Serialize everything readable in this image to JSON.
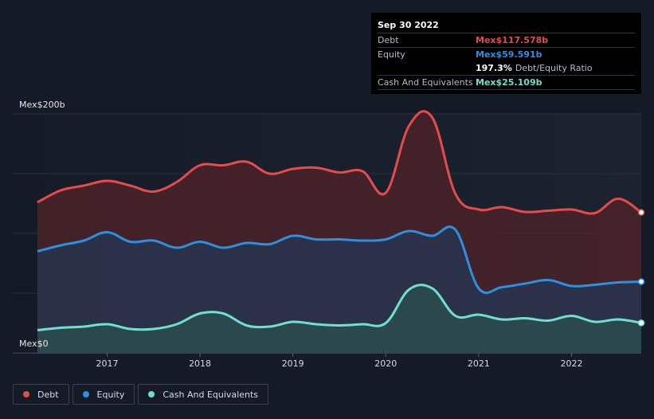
{
  "tooltip": {
    "date": "Sep 30 2022",
    "rows": [
      {
        "label": "Debt",
        "value": "Mex$117.578b",
        "color": "#e64b4b"
      },
      {
        "label": "Equity",
        "value": "Mex$59.591b",
        "color": "#2d8fe0"
      }
    ],
    "ratio_value": "197.3%",
    "ratio_label": "Debt/Equity Ratio",
    "cash": {
      "label": "Cash And Equivalents",
      "value": "Mex$25.109b",
      "color": "#6fe0cd"
    }
  },
  "legend": [
    {
      "label": "Debt",
      "color": "#e64b4b"
    },
    {
      "label": "Equity",
      "color": "#2d8fe0"
    },
    {
      "label": "Cash And Equivalents",
      "color": "#6fe0cd"
    }
  ],
  "chart_data": {
    "type": "area",
    "title": "",
    "xlabel": "",
    "ylabel": "",
    "y_top_label": "Mex$200b",
    "y_bottom_label": "Mex$0",
    "ylim": [
      0,
      200
    ],
    "xlim": [
      2016.25,
      2022.75
    ],
    "x_ticks": [
      2017,
      2018,
      2019,
      2020,
      2021,
      2022
    ],
    "x_tick_labels": [
      "2017",
      "2018",
      "2019",
      "2020",
      "2021",
      "2022"
    ],
    "series": [
      {
        "name": "Debt",
        "color": "#e64b4b",
        "fill": "#4a2228",
        "x": [
          2016.25,
          2016.5,
          2016.75,
          2017.0,
          2017.25,
          2017.5,
          2017.75,
          2018.0,
          2018.25,
          2018.5,
          2018.75,
          2019.0,
          2019.25,
          2019.5,
          2019.75,
          2020.0,
          2020.25,
          2020.5,
          2020.75,
          2021.0,
          2021.25,
          2021.5,
          2021.75,
          2022.0,
          2022.25,
          2022.5,
          2022.75
        ],
        "values": [
          126,
          136,
          140,
          144,
          140,
          135,
          143,
          157,
          157,
          160,
          150,
          154,
          155,
          151,
          152,
          134,
          190,
          197,
          133,
          120,
          122,
          118,
          119,
          120,
          117,
          129,
          117.578
        ]
      },
      {
        "name": "Equity",
        "color": "#2d8fe0",
        "fill": "#26344d",
        "x": [
          2016.25,
          2016.5,
          2016.75,
          2017.0,
          2017.25,
          2017.5,
          2017.75,
          2018.0,
          2018.25,
          2018.5,
          2018.75,
          2019.0,
          2019.25,
          2019.5,
          2019.75,
          2020.0,
          2020.25,
          2020.5,
          2020.75,
          2021.0,
          2021.25,
          2021.5,
          2021.75,
          2022.0,
          2022.25,
          2022.5,
          2022.75
        ],
        "values": [
          85,
          90,
          94,
          101,
          93,
          94,
          88,
          93,
          88,
          92,
          91,
          98,
          95,
          95,
          94,
          95,
          102,
          98,
          103,
          54,
          55,
          58,
          61,
          56,
          57,
          59,
          59.591
        ]
      },
      {
        "name": "Cash And Equivalents",
        "color": "#6fe0cd",
        "fill": "#2c4e4f",
        "x": [
          2016.25,
          2016.5,
          2016.75,
          2017.0,
          2017.25,
          2017.5,
          2017.75,
          2018.0,
          2018.25,
          2018.5,
          2018.75,
          2019.0,
          2019.25,
          2019.5,
          2019.75,
          2020.0,
          2020.25,
          2020.5,
          2020.75,
          2021.0,
          2021.25,
          2021.5,
          2021.75,
          2022.0,
          2022.25,
          2022.5,
          2022.75
        ],
        "values": [
          19,
          21,
          22,
          24,
          20,
          20,
          24,
          33,
          33,
          23,
          22,
          26,
          24,
          23,
          24,
          25,
          53,
          54,
          31,
          32,
          28,
          29,
          27,
          31,
          26,
          28,
          25.109
        ]
      }
    ]
  }
}
